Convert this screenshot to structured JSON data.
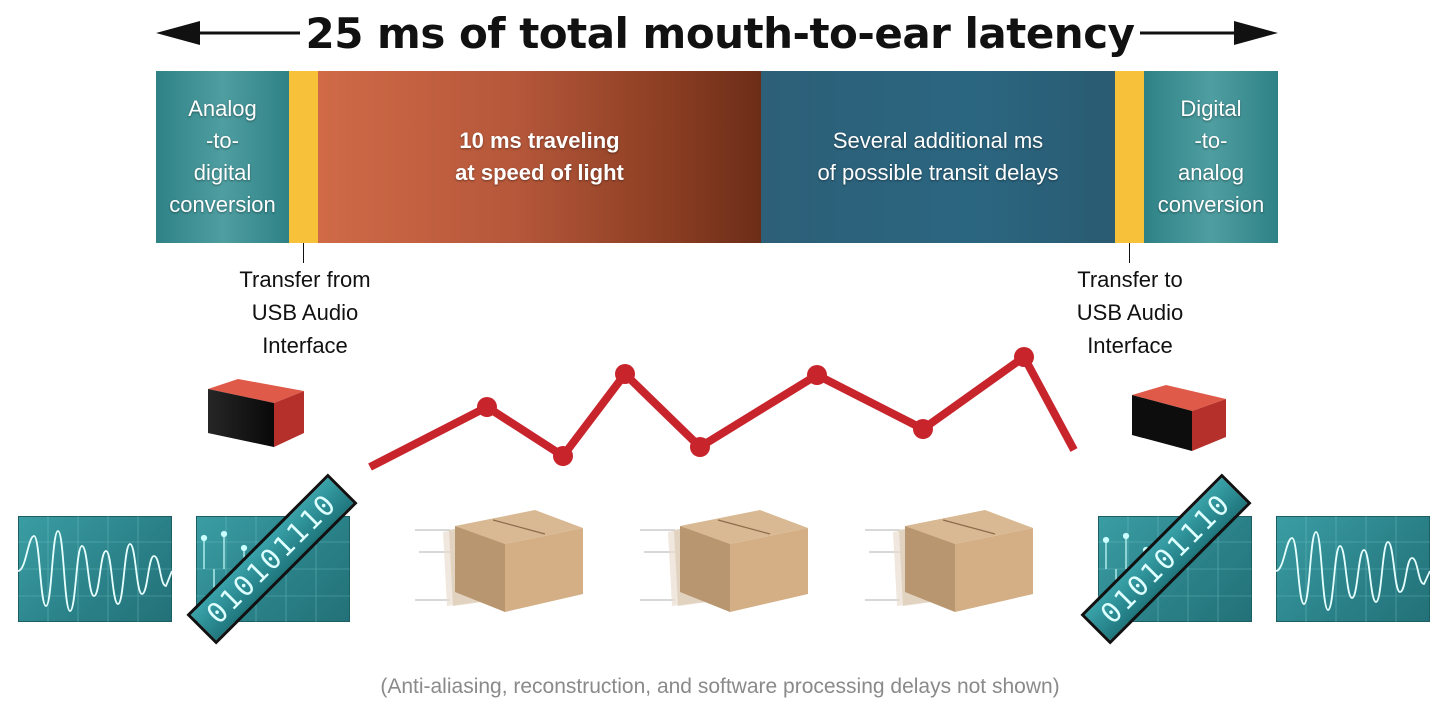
{
  "title": "25 ms of total mouth-to-ear latency",
  "timeline": {
    "adc": "Analog\n-to-\ndigital\nconversion",
    "light": "10 ms traveling\nat speed of light",
    "transit": "Several additional ms\nof possible transit delays",
    "dac": "Digital\n-to-\nanalog\nconversion"
  },
  "callouts": {
    "transfer_in": "Transfer from\nUSB Audio\nInterface",
    "transfer_out": "Transfer to\nUSB Audio\nInterface"
  },
  "binary": {
    "left": "010101110",
    "right": "010101110"
  },
  "footnote": "(Anti-aliasing, reconstruction, and software processing delays not shown)",
  "colors": {
    "teal": "#2e8286",
    "gold": "#f8c13a",
    "rust": "#b5573a",
    "navy": "#2b6680",
    "network_red": "#c8242c"
  }
}
